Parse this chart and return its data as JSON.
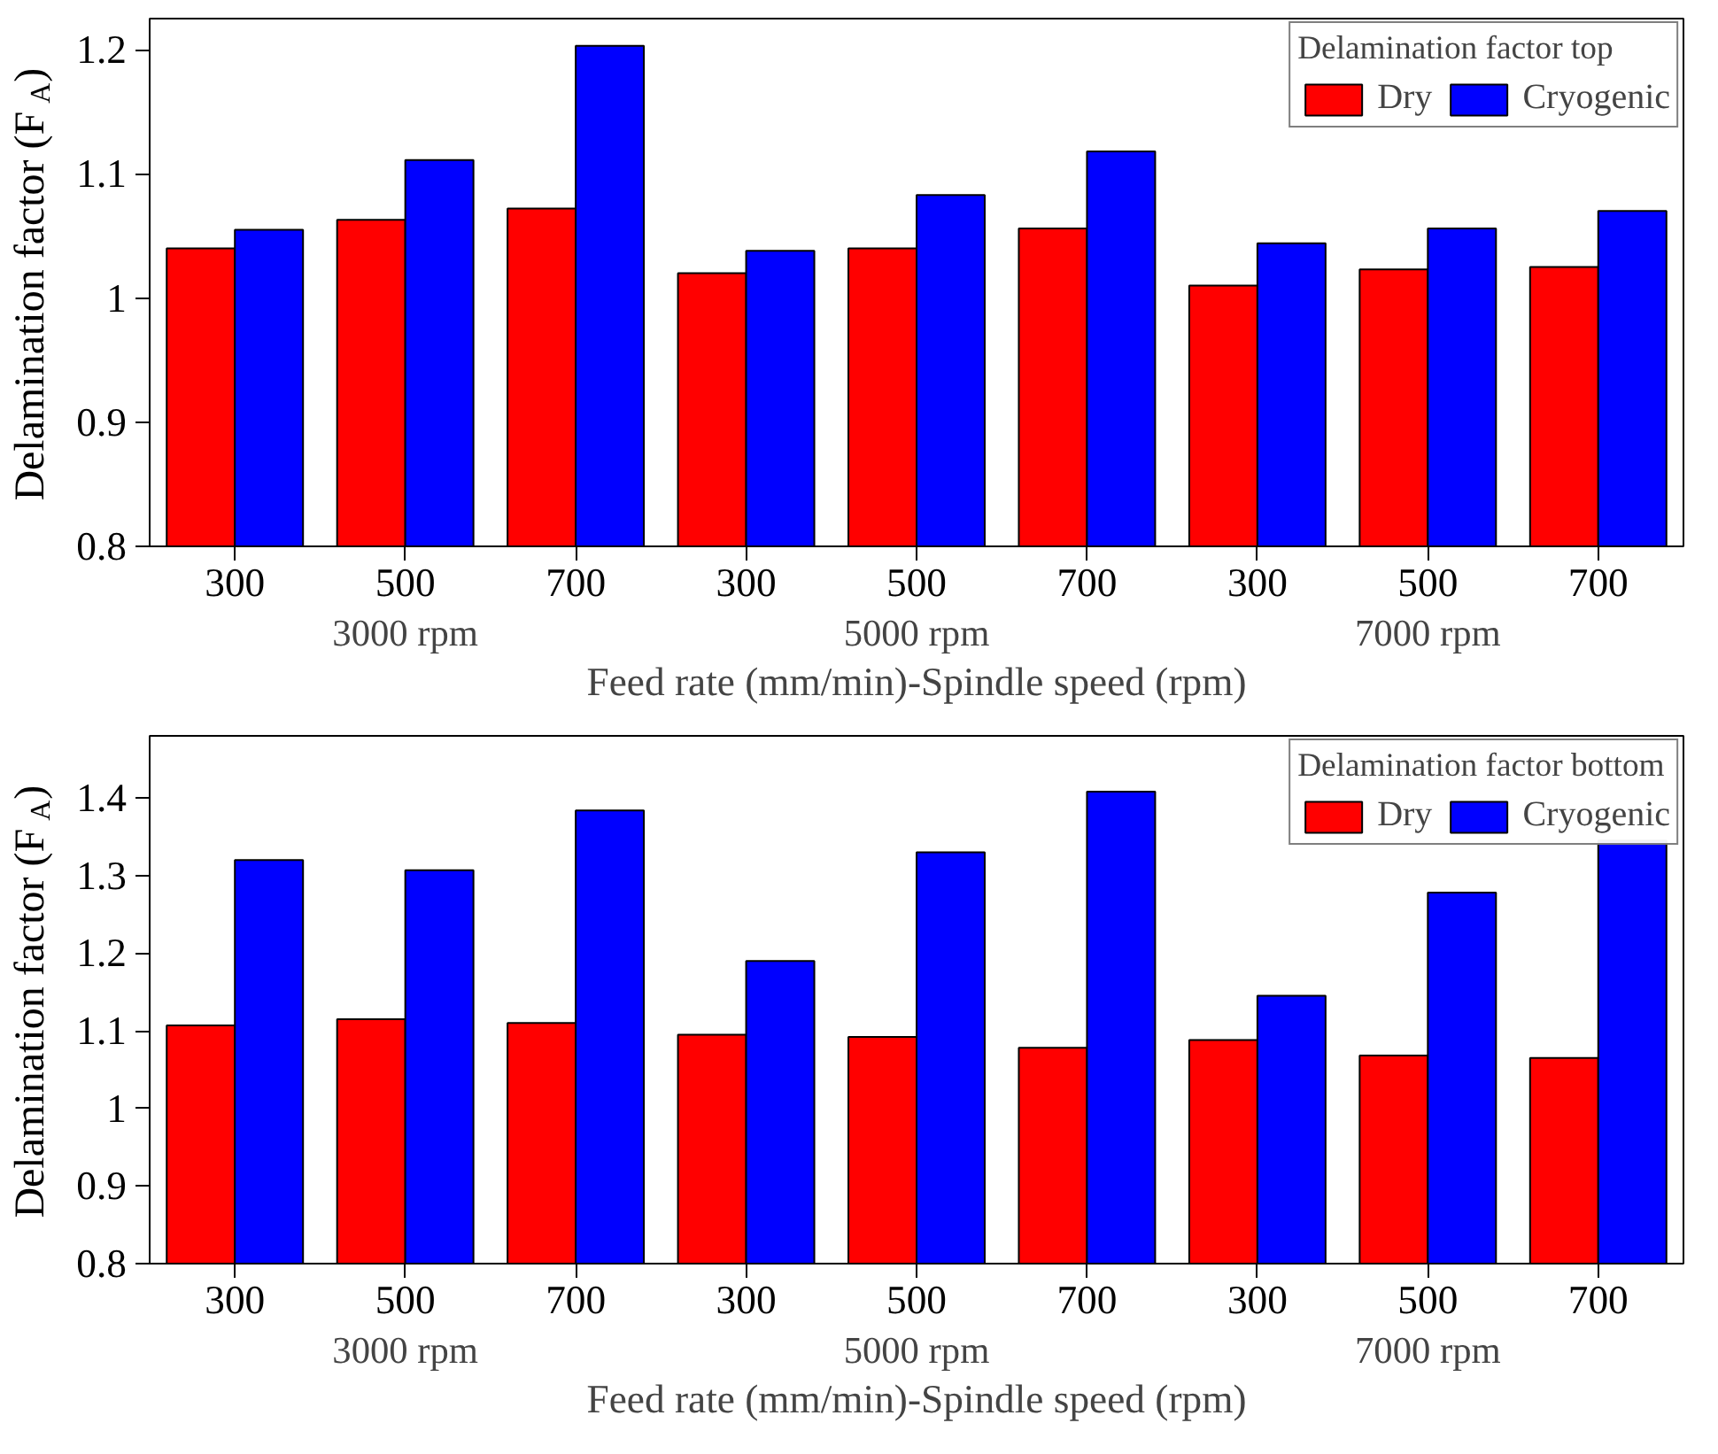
{
  "chart_data": [
    {
      "type": "bar",
      "categories": [
        "300",
        "500",
        "700",
        "300",
        "500",
        "700",
        "300",
        "500",
        "700"
      ],
      "legend_title": "Delamination factor top",
      "legend": "top right",
      "grid": false,
      "series": [
        {
          "name": "Dry",
          "color": "#ff0000",
          "values": [
            1.04,
            1.063,
            1.072,
            1.02,
            1.04,
            1.056,
            1.01,
            1.023,
            1.025
          ]
        },
        {
          "name": "Cryogenic",
          "color": "#0000ff",
          "values": [
            1.055,
            1.111,
            1.203,
            1.038,
            1.083,
            1.118,
            1.044,
            1.056,
            1.07
          ]
        }
      ],
      "ylim": [
        0.8,
        1.225
      ],
      "yticks": [
        0.8,
        0.9,
        1.0,
        1.1,
        1.2
      ],
      "xlabel": "Feed rate (mm/min)-Spindle speed (rpm)",
      "ylabel": "Delamination factor (F$_{A}$)",
      "annotations": [
        "3000 rpm",
        "5000 rpm",
        "7000 rpm"
      ]
    },
    {
      "type": "bar",
      "categories": [
        "300",
        "500",
        "700",
        "300",
        "500",
        "700",
        "300",
        "500",
        "700"
      ],
      "legend_title": "Delamination factor bottom",
      "legend": "top right",
      "grid": false,
      "series": [
        {
          "name": "Dry",
          "color": "#ff0000",
          "values": [
            1.107,
            1.115,
            1.11,
            1.095,
            1.092,
            1.078,
            1.088,
            1.068,
            1.065
          ]
        },
        {
          "name": "Cryogenic",
          "color": "#0000ff",
          "values": [
            1.32,
            1.307,
            1.384,
            1.19,
            1.33,
            1.408,
            1.145,
            1.278,
            1.345
          ]
        }
      ],
      "ylim": [
        0.8,
        1.48
      ],
      "yticks": [
        0.8,
        0.9,
        1.0,
        1.1,
        1.2,
        1.3,
        1.4
      ],
      "xlabel": "Feed rate (mm/min)-Spindle speed (rpm)",
      "ylabel": "Delamination factor (F$_{A}$)",
      "annotations": [
        "3000 rpm",
        "5000 rpm",
        "7000 rpm"
      ]
    }
  ]
}
